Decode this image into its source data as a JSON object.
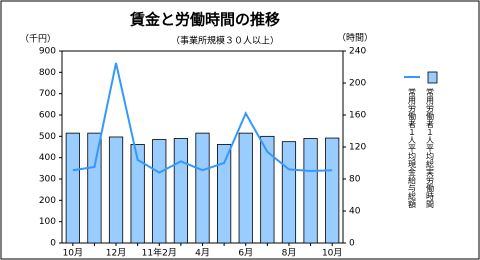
{
  "chart_data": {
    "type": "bar-line",
    "title": "賃金と労働時間の推移",
    "subtitle": "（事業所規模３０人以上）",
    "y_label": "（千円）",
    "y2_label": "（時間）",
    "categories": [
      "10月",
      null,
      "12月",
      null,
      "11年2月",
      null,
      "4月",
      null,
      "6月",
      null,
      "8月",
      null,
      "10月"
    ],
    "series": [
      {
        "name": "常用労働者１人平均現金給与総額",
        "color": "#99ccff",
        "kind": "bar",
        "values": [
          515,
          515,
          497,
          462,
          485,
          490,
          515,
          462,
          515,
          500,
          475,
          490,
          492
        ]
      },
      {
        "name": "常用労働者１人平均総実労働時間",
        "color": "#3399ff",
        "kind": "line",
        "axis": "y2",
        "values": [
          91,
          95,
          225,
          104,
          88,
          102,
          91,
          100,
          162,
          114,
          92,
          90,
          91
        ]
      }
    ],
    "ylim": [
      0,
      900
    ],
    "yticks": [
      0,
      100,
      200,
      300,
      400,
      500,
      600,
      700,
      800,
      900
    ],
    "y2lim": [
      0,
      240
    ],
    "y2ticks": [
      0,
      40,
      80,
      120,
      160,
      200,
      240
    ]
  }
}
